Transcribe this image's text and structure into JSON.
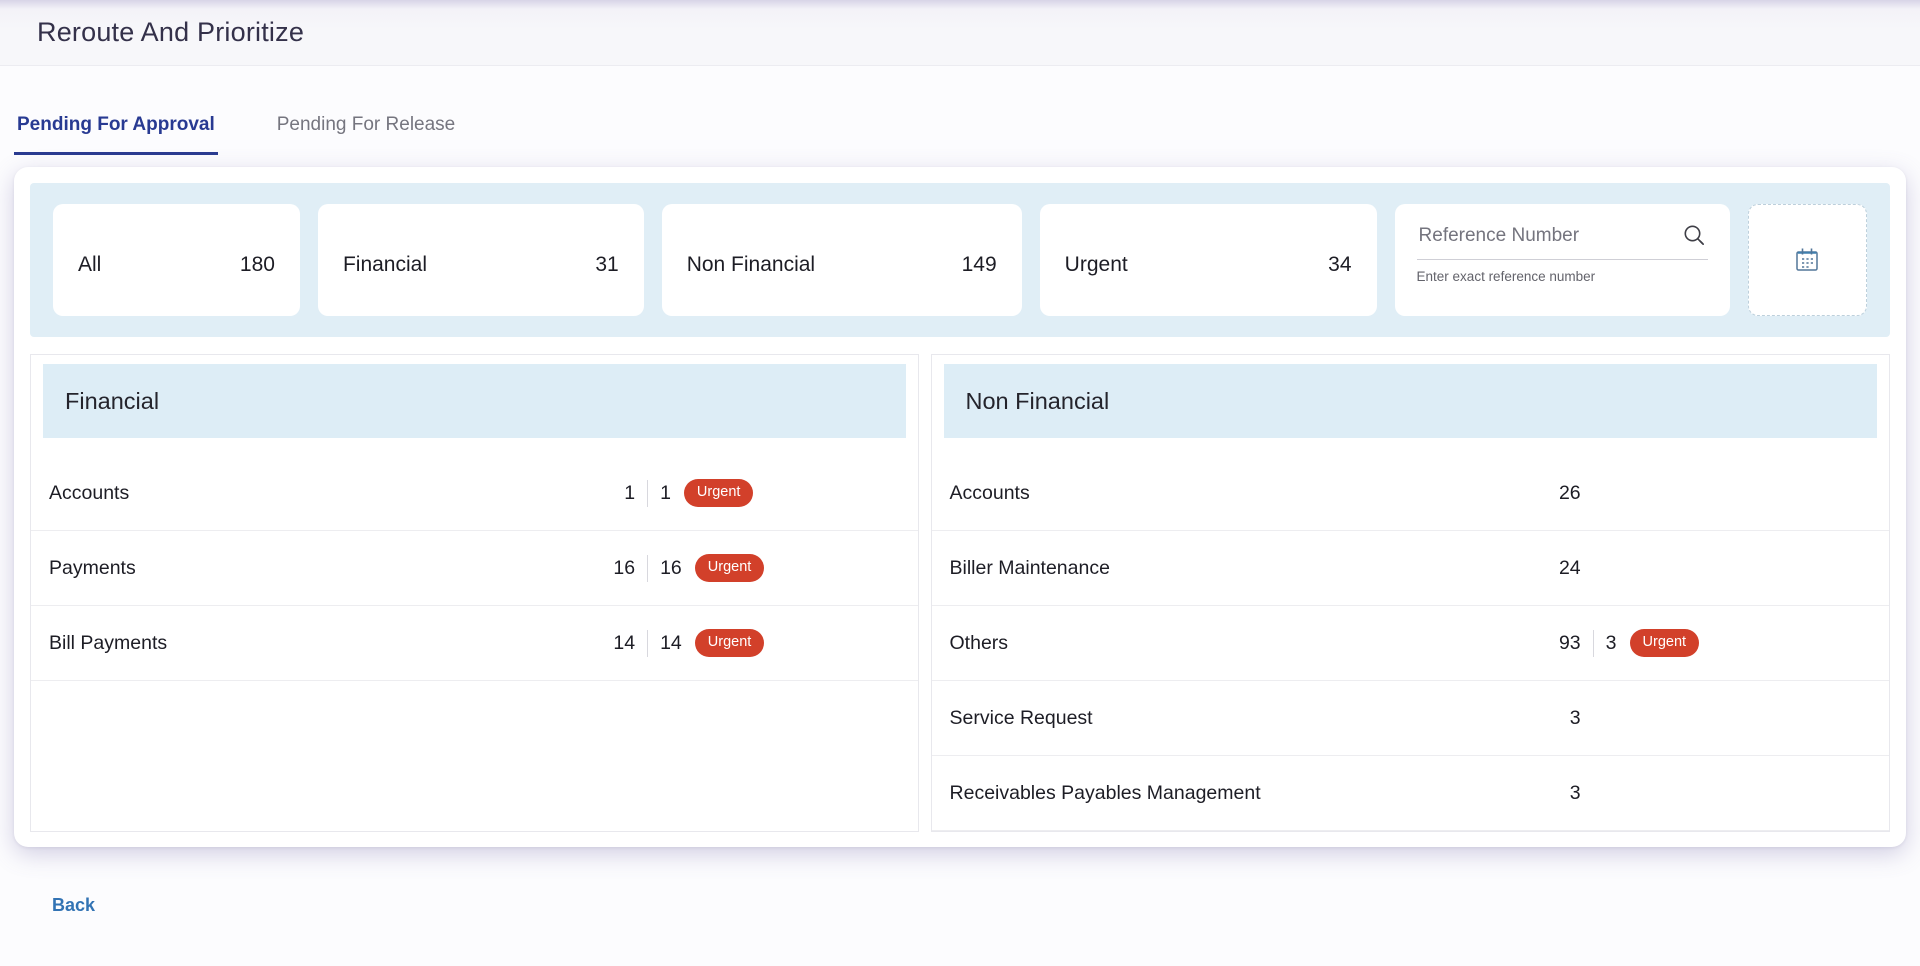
{
  "page": {
    "title": "Reroute And Prioritize",
    "back_label": "Back"
  },
  "tabs": [
    {
      "label": "Pending For Approval",
      "active": true
    },
    {
      "label": "Pending For Release",
      "active": false
    }
  ],
  "filter_bar": {
    "stats": [
      {
        "label": "All",
        "count": "180"
      },
      {
        "label": "Financial",
        "count": "31"
      },
      {
        "label": "Non Financial",
        "count": "149"
      },
      {
        "label": "Urgent",
        "count": "34"
      }
    ],
    "reference_search": {
      "placeholder": "Reference Number",
      "value": "",
      "hint": "Enter exact reference number",
      "icon": "search-icon"
    },
    "date_filter": {
      "icon": "calendar-icon"
    }
  },
  "panels": [
    {
      "title": "Financial",
      "rows": [
        {
          "label": "Accounts",
          "count": "1",
          "urgent_count": "1",
          "urgent_label": "Urgent"
        },
        {
          "label": "Payments",
          "count": "16",
          "urgent_count": "16",
          "urgent_label": "Urgent"
        },
        {
          "label": "Bill Payments",
          "count": "14",
          "urgent_count": "14",
          "urgent_label": "Urgent"
        }
      ]
    },
    {
      "title": "Non Financial",
      "rows": [
        {
          "label": "Accounts",
          "count": "26"
        },
        {
          "label": "Biller Maintenance",
          "count": "24"
        },
        {
          "label": "Others",
          "count": "93",
          "urgent_count": "3",
          "urgent_label": "Urgent"
        },
        {
          "label": "Service Request",
          "count": "3"
        },
        {
          "label": "Receivables Payables Management",
          "count": "3"
        }
      ]
    }
  ],
  "colors": {
    "accent_blue": "#2a3b90",
    "urgent_red": "#d2402a",
    "filter_bar_bg": "#e0eef6",
    "panel_header_bg": "#ddedf6",
    "link_blue": "#3273b4"
  }
}
